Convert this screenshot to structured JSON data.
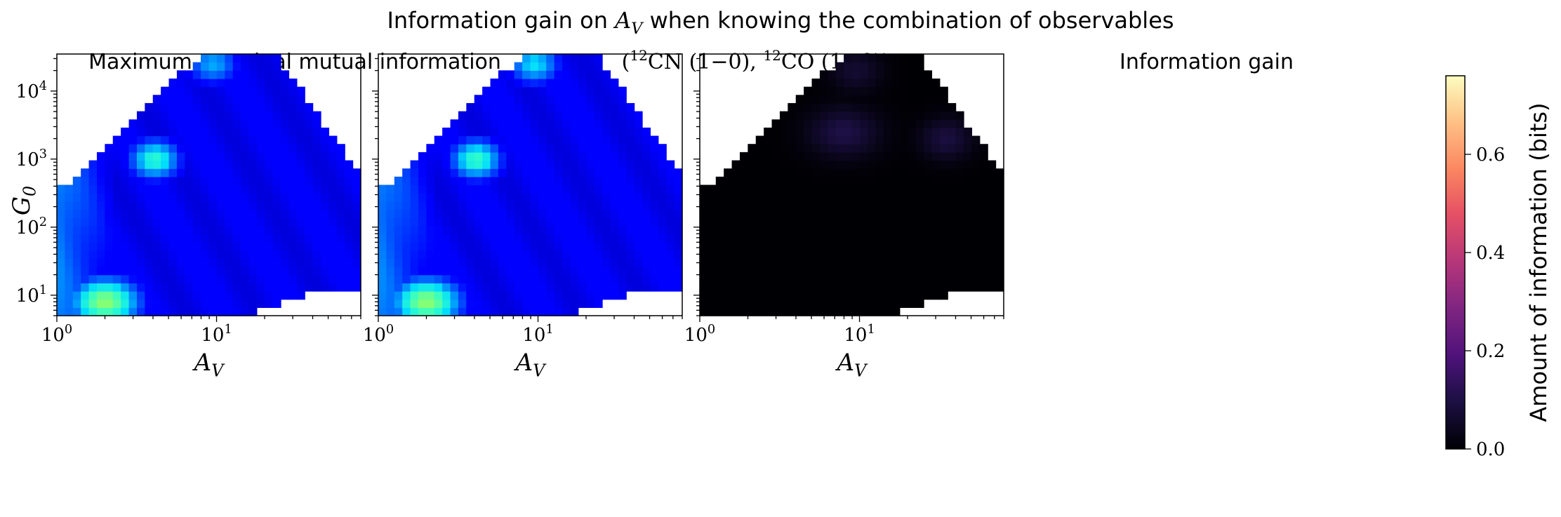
{
  "figure": {
    "suptitle": "Information gain on A_V when knowing the combination of observables",
    "colorbar": {
      "label": "Amount of information (bits)",
      "ticks": [
        "0.0",
        "0.2",
        "0.4",
        "0.6"
      ]
    }
  },
  "chart_data": [
    {
      "type": "heatmap",
      "title": "Maximum marginal mutual information",
      "xlabel": "A_V",
      "ylabel": "G_0",
      "xscale": "log",
      "yscale": "log",
      "xlim": [
        1,
        80
      ],
      "ylim": [
        5,
        35000
      ],
      "x_tick_labels": [
        "10^0",
        "10^1"
      ],
      "y_tick_labels": [
        "10^1",
        "10^2",
        "10^3",
        "10^4"
      ],
      "colormap": "jet",
      "value_range": [
        0,
        1
      ],
      "hotspots": [
        {
          "A_V": 2.0,
          "G_0": 8,
          "value": 0.62
        },
        {
          "A_V": 4.1,
          "G_0": 1000,
          "value": 0.48
        },
        {
          "A_V": 9.5,
          "G_0": 25000,
          "value": 0.34
        }
      ]
    },
    {
      "type": "heatmap",
      "title": "(12CN (1-0), 12CO (1-0))",
      "xlabel": "A_V",
      "xscale": "log",
      "yscale": "log",
      "xlim": [
        1,
        80
      ],
      "ylim": [
        5,
        35000
      ],
      "x_tick_labels": [
        "10^0",
        "10^1"
      ],
      "colormap": "jet",
      "value_range": [
        0,
        1
      ],
      "hotspots": [
        {
          "A_V": 2.0,
          "G_0": 8,
          "value": 0.62
        },
        {
          "A_V": 4.1,
          "G_0": 1000,
          "value": 0.5
        },
        {
          "A_V": 9.5,
          "G_0": 25000,
          "value": 0.4
        }
      ]
    },
    {
      "type": "heatmap",
      "title": "Information gain",
      "xlabel": "A_V",
      "xscale": "log",
      "yscale": "log",
      "xlim": [
        1,
        80
      ],
      "ylim": [
        5,
        35000
      ],
      "x_tick_labels": [
        "10^0",
        "10^1"
      ],
      "colormap": "magma",
      "value_range": [
        0,
        0.76
      ],
      "hotspots": [
        {
          "A_V": 8.0,
          "G_0": 2500,
          "value": 0.1
        },
        {
          "A_V": 35,
          "G_0": 2000,
          "value": 0.09
        },
        {
          "A_V": 9.5,
          "G_0": 20000,
          "value": 0.07
        }
      ]
    }
  ]
}
